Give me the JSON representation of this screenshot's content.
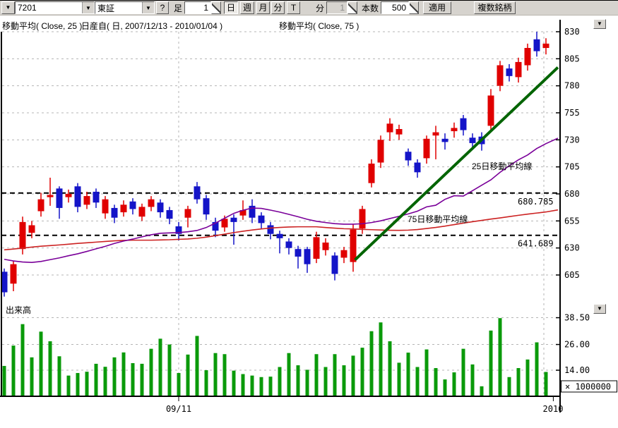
{
  "icons": {
    "dropdown_arrow": "▼"
  },
  "toolbar": {
    "symbol_value": "7201",
    "market_value": "東証",
    "help_label": "?",
    "ashi_label": "足",
    "interval_value": "1",
    "period_buttons": [
      "日",
      "週",
      "月",
      "分",
      "T"
    ],
    "selected_period": "日",
    "min_label": "分",
    "min_value": "1",
    "bars_label": "本数",
    "bars_value": "500",
    "apply_label": "適用",
    "multi_label": "複数銘柄"
  },
  "legend": {
    "ma25": "移動平均( Close, 25 )",
    "series": "日産自( 日, 2007/12/13 - 2010/01/04 )",
    "ma75": "移動平均( Close, 75 )"
  },
  "chart_data": {
    "type": "candlestick+volume",
    "series_name": "日産自 7201 東証 日足",
    "candles": [
      [
        608,
        611,
        585,
        589
      ],
      [
        597,
        618,
        590,
        615
      ],
      [
        629,
        659,
        624,
        654
      ],
      [
        644,
        655,
        639,
        651
      ],
      [
        664,
        681,
        659,
        675
      ],
      [
        677,
        695,
        669,
        679
      ],
      [
        685,
        687,
        657,
        667
      ],
      [
        677,
        684,
        672,
        680
      ],
      [
        687,
        690,
        663,
        668
      ],
      [
        670,
        682,
        666,
        678
      ],
      [
        682,
        685,
        667,
        672
      ],
      [
        662,
        678,
        657,
        675
      ],
      [
        667,
        670,
        653,
        658
      ],
      [
        663,
        674,
        659,
        670
      ],
      [
        673,
        676,
        661,
        666
      ],
      [
        659,
        671,
        655,
        668
      ],
      [
        668,
        678,
        664,
        675
      ],
      [
        672,
        675,
        658,
        663
      ],
      [
        665,
        668,
        652,
        657
      ],
      [
        650,
        654,
        637,
        643
      ],
      [
        658,
        669,
        649,
        666
      ],
      [
        687,
        691,
        671,
        675
      ],
      [
        676,
        679,
        656,
        661
      ],
      [
        654,
        658,
        640,
        646
      ],
      [
        649,
        660,
        645,
        657
      ],
      [
        658,
        661,
        633,
        654
      ],
      [
        660,
        674,
        656,
        665
      ],
      [
        669,
        675,
        653,
        658
      ],
      [
        660,
        663,
        648,
        653
      ],
      [
        651,
        654,
        638,
        643
      ],
      [
        643,
        646,
        625,
        639
      ],
      [
        636,
        639,
        624,
        630
      ],
      [
        629,
        632,
        611,
        622
      ],
      [
        629,
        631,
        607,
        615
      ],
      [
        620,
        645,
        616,
        640
      ],
      [
        628,
        639,
        623,
        635
      ],
      [
        623,
        626,
        600,
        606
      ],
      [
        621,
        631,
        616,
        628
      ],
      [
        617,
        652,
        608,
        647
      ],
      [
        648,
        669,
        643,
        666
      ],
      [
        690,
        712,
        686,
        708
      ],
      [
        709,
        734,
        704,
        730
      ],
      [
        737,
        750,
        729,
        745
      ],
      [
        735,
        744,
        730,
        740
      ],
      [
        719,
        722,
        706,
        711
      ],
      [
        709,
        712,
        695,
        700
      ],
      [
        713,
        734,
        708,
        731
      ],
      [
        734,
        743,
        712,
        737
      ],
      [
        731,
        736,
        721,
        728
      ],
      [
        738,
        746,
        732,
        741
      ],
      [
        750,
        753,
        734,
        739
      ],
      [
        732,
        736,
        722,
        727
      ],
      [
        733,
        737,
        720,
        726
      ],
      [
        743,
        777,
        738,
        771
      ],
      [
        780,
        803,
        775,
        799
      ],
      [
        796,
        800,
        784,
        789
      ],
      [
        788,
        806,
        783,
        802
      ],
      [
        799,
        819,
        794,
        815
      ],
      [
        823,
        830,
        807,
        812
      ],
      [
        815,
        824,
        809,
        819
      ]
    ],
    "volumes": [
      16,
      25.5,
      35.5,
      20,
      32,
      27.5,
      20.5,
      11.5,
      12.7,
      13.3,
      17,
      15.6,
      20,
      22.3,
      17.3,
      17,
      24,
      28.7,
      26,
      12.7,
      21.3,
      30,
      14,
      22,
      21.5,
      13.8,
      12.2,
      11.5,
      10.8,
      11,
      15.5,
      22,
      16.3,
      14.2,
      21.5,
      15.5,
      21.5,
      16.3,
      20.8,
      24.5,
      32.2,
      36.3,
      27.5,
      17.5,
      22.2,
      15.5,
      23.7,
      15,
      9.7,
      13,
      24,
      16.7,
      6.5,
      32.5,
      38.3,
      10.8,
      15,
      19,
      27,
      13.2
    ],
    "ma25": [
      619.5,
      618,
      617,
      616.6,
      617.5,
      619.2,
      620.8,
      622.8,
      624.6,
      626.8,
      629.2,
      631.5,
      634.2,
      636.4,
      638.2,
      640.3,
      642.2,
      643.6,
      643.9,
      644.2,
      645,
      646.2,
      648.9,
      653,
      657.5,
      662,
      664.9,
      666.9,
      666.6,
      665,
      663.2,
      661.1,
      658.9,
      656.5,
      654.7,
      653.5,
      652.5,
      652,
      652,
      652.4,
      653.5,
      655.1,
      657.2,
      659.3,
      661.5,
      664,
      668,
      669.5,
      675,
      678.3,
      678,
      683,
      688,
      693,
      700,
      706,
      711.5,
      716,
      722,
      726.5
    ],
    "ma25_tail": [
      60.3,
      731.5
    ],
    "ma75": [
      628.3,
      629,
      629.9,
      630.8,
      631.6,
      632.2,
      632.8,
      633.5,
      634.2,
      634.8,
      635.4,
      636,
      636.6,
      637,
      637.2,
      637.2,
      637.2,
      637.4,
      637.6,
      638,
      638.3,
      639,
      640,
      641.4,
      642.8,
      644.2,
      645.5,
      646.6,
      647.6,
      648.4,
      649,
      649.4,
      649.6,
      649.6,
      649.6,
      648.9,
      648.3,
      647.8,
      647.6,
      647.2,
      646.9,
      646.6,
      646.4,
      646.3,
      646.5,
      647,
      648,
      649,
      650.2,
      651.6,
      653,
      654.3,
      655.5,
      656.7,
      657.8,
      659,
      660.2,
      661.3,
      662.3,
      663.3
    ],
    "ma75_tail": [
      60.3,
      665.2
    ],
    "trendline": {
      "from": [
        38.2,
        619
      ],
      "to": [
        60.3,
        797
      ]
    },
    "price_axis": {
      "ticks": [
        830,
        805,
        780,
        755,
        730,
        705,
        680,
        655,
        630,
        605
      ]
    },
    "volume_axis": {
      "ticks": [
        38.5,
        26,
        14
      ],
      "tick_labels": [
        "38.50",
        "26.00",
        "14.00"
      ],
      "multiplier": "× 1000000"
    },
    "x_axis": {
      "labels": [
        {
          "text": "09/11",
          "i": 19
        },
        {
          "text": "2010",
          "i": 59.8
        }
      ],
      "gridlines_i": [
        19,
        58.77
      ]
    },
    "levels": [
      {
        "value": 680.785,
        "label": "680.785"
      },
      {
        "value": 641.689,
        "label": "641.689"
      }
    ],
    "labels": {
      "ma25": "25日移動平均線",
      "ma75": "75日移動平均線",
      "volume": "出来高"
    },
    "label_pos": {
      "ma25": [
        668,
        218
      ],
      "ma75": [
        577,
        293
      ],
      "volume": [
        8,
        422
      ]
    },
    "colors": {
      "up": "#e00000",
      "down": "#1414c8",
      "volume": "#0a9a0a",
      "trend": "#006400",
      "ma25": "#7a0099",
      "ma75": "#cc2222",
      "grid": "#b4b4b4",
      "level": "#000000",
      "axis": "#000000"
    }
  }
}
